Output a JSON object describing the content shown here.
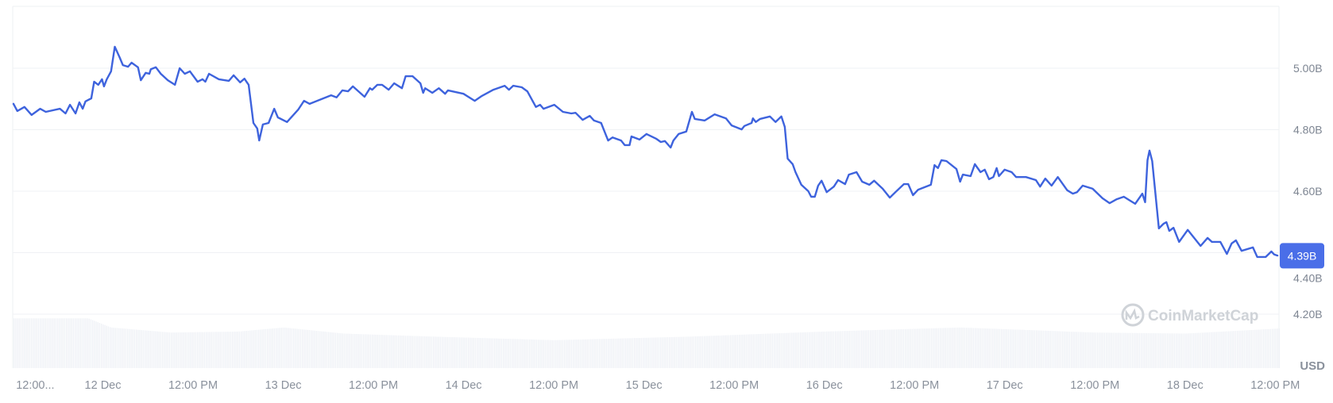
{
  "chart_data": {
    "type": "line",
    "currency_label": "USD",
    "y_tick_labels": [
      "5.00B",
      "4.80B",
      "4.60B",
      "4.40B",
      "4.20B"
    ],
    "y_ticks": [
      5.0,
      4.8,
      4.6,
      4.4,
      4.2
    ],
    "ylim": [
      4.09,
      5.2
    ],
    "xlim": [
      "11 Dec 12:00",
      "18 Dec 12:30"
    ],
    "x_tick_labels": [
      {
        "label": "12:00...",
        "at": "11 Dec 15:00"
      },
      {
        "label": "12 Dec",
        "at": "12 Dec 00:00"
      },
      {
        "label": "12:00 PM",
        "at": "12 Dec 12:00"
      },
      {
        "label": "13 Dec",
        "at": "13 Dec 00:00"
      },
      {
        "label": "12:00 PM",
        "at": "13 Dec 12:00"
      },
      {
        "label": "14 Dec",
        "at": "14 Dec 00:00"
      },
      {
        "label": "12:00 PM",
        "at": "14 Dec 12:00"
      },
      {
        "label": "15 Dec",
        "at": "15 Dec 00:00"
      },
      {
        "label": "12:00 PM",
        "at": "15 Dec 12:00"
      },
      {
        "label": "16 Dec",
        "at": "16 Dec 00:00"
      },
      {
        "label": "12:00 PM",
        "at": "16 Dec 12:00"
      },
      {
        "label": "17 Dec",
        "at": "17 Dec 00:00"
      },
      {
        "label": "12:00 PM",
        "at": "17 Dec 12:00"
      },
      {
        "label": "18 Dec",
        "at": "18 Dec 00:00"
      },
      {
        "label": "12:00 PM",
        "at": "18 Dec 12:00"
      }
    ],
    "grid": true,
    "line_color": "#3e63dd",
    "current_value_label": "4.39B",
    "current_value": 4.39,
    "badge_color": "#4a6ee8",
    "watermark": "CoinMarketCap",
    "volume_relative": [
      {
        "x": "11 Dec 12:00",
        "level": 0.98
      },
      {
        "x": "11 Dec 22:00",
        "level": 0.98
      },
      {
        "x": "12 Dec 01:00",
        "level": 0.8
      },
      {
        "x": "12 Dec 09:00",
        "level": 0.7
      },
      {
        "x": "12 Dec 18:00",
        "level": 0.72
      },
      {
        "x": "13 Dec 00:00",
        "level": 0.8
      },
      {
        "x": "13 Dec 08:00",
        "level": 0.68
      },
      {
        "x": "13 Dec 20:00",
        "level": 0.62
      },
      {
        "x": "14 Dec 12:00",
        "level": 0.55
      },
      {
        "x": "15 Dec 06:00",
        "level": 0.62
      },
      {
        "x": "16 Dec 00:00",
        "level": 0.72
      },
      {
        "x": "16 Dec 18:00",
        "level": 0.8
      },
      {
        "x": "17 Dec 12:00",
        "level": 0.7
      },
      {
        "x": "18 Dec 00:00",
        "level": 0.68
      },
      {
        "x": "18 Dec 12:30",
        "level": 0.78
      }
    ],
    "series": [
      {
        "points": [
          [
            "11 Dec 12:04",
            4.886
          ],
          [
            "11 Dec 12:37",
            4.861
          ],
          [
            "11 Dec 13:34",
            4.874
          ],
          [
            "11 Dec 14:31",
            4.848
          ],
          [
            "11 Dec 15:39",
            4.868
          ],
          [
            "11 Dec 16:24",
            4.858
          ],
          [
            "11 Dec 18:17",
            4.868
          ],
          [
            "11 Dec 19:02",
            4.853
          ],
          [
            "11 Dec 19:37",
            4.881
          ],
          [
            "11 Dec 20:22",
            4.853
          ],
          [
            "11 Dec 20:52",
            4.889
          ],
          [
            "11 Dec 21:19",
            4.868
          ],
          [
            "11 Dec 21:41",
            4.892
          ],
          [
            "11 Dec 22:27",
            4.902
          ],
          [
            "11 Dec 22:50",
            4.956
          ],
          [
            "11 Dec 23:23",
            4.946
          ],
          [
            "11 Dec 23:53",
            4.964
          ],
          [
            "12 Dec 00:09",
            4.941
          ],
          [
            "12 Dec 00:31",
            4.964
          ],
          [
            "12 Dec 01:05",
            4.99
          ],
          [
            "12 Dec 01:35",
            5.07
          ],
          [
            "12 Dec 02:13",
            5.036
          ],
          [
            "12 Dec 02:40",
            5.01
          ],
          [
            "12 Dec 03:21",
            5.005
          ],
          [
            "12 Dec 03:49",
            5.018
          ],
          [
            "12 Dec 04:40",
            5.003
          ],
          [
            "12 Dec 05:03",
            4.961
          ],
          [
            "12 Dec 05:42",
            4.985
          ],
          [
            "12 Dec 06:11",
            4.982
          ],
          [
            "12 Dec 06:23",
            4.997
          ],
          [
            "12 Dec 07:03",
            5.003
          ],
          [
            "12 Dec 07:42",
            4.982
          ],
          [
            "12 Dec 08:38",
            4.961
          ],
          [
            "12 Dec 09:35",
            4.946
          ],
          [
            "12 Dec 10:13",
            5.0
          ],
          [
            "12 Dec 10:54",
            4.982
          ],
          [
            "12 Dec 11:35",
            4.99
          ],
          [
            "12 Dec 12:36",
            4.956
          ],
          [
            "12 Dec 13:15",
            4.964
          ],
          [
            "12 Dec 13:38",
            4.956
          ],
          [
            "12 Dec 14:07",
            4.982
          ],
          [
            "12 Dec 15:26",
            4.964
          ],
          [
            "12 Dec 16:46",
            4.959
          ],
          [
            "12 Dec 17:24",
            4.977
          ],
          [
            "12 Dec 18:16",
            4.954
          ],
          [
            "12 Dec 18:50",
            4.966
          ],
          [
            "12 Dec 19:24",
            4.946
          ],
          [
            "12 Dec 19:40",
            4.892
          ],
          [
            "12 Dec 20:02",
            4.822
          ],
          [
            "12 Dec 20:32",
            4.804
          ],
          [
            "12 Dec 20:48",
            4.765
          ],
          [
            "12 Dec 21:17",
            4.817
          ],
          [
            "12 Dec 22:03",
            4.822
          ],
          [
            "12 Dec 22:48",
            4.868
          ],
          [
            "12 Dec 23:17",
            4.84
          ],
          [
            "13 Dec 00:30",
            4.825
          ],
          [
            "13 Dec 02:01",
            4.866
          ],
          [
            "13 Dec 02:46",
            4.894
          ],
          [
            "13 Dec 03:31",
            4.884
          ],
          [
            "13 Dec 05:02",
            4.899
          ],
          [
            "13 Dec 06:22",
            4.912
          ],
          [
            "13 Dec 07:06",
            4.905
          ],
          [
            "13 Dec 07:52",
            4.928
          ],
          [
            "13 Dec 08:37",
            4.925
          ],
          [
            "13 Dec 09:16",
            4.941
          ],
          [
            "13 Dec 10:49",
            4.907
          ],
          [
            "13 Dec 11:32",
            4.935
          ],
          [
            "13 Dec 11:50",
            4.93
          ],
          [
            "13 Dec 12:31",
            4.946
          ],
          [
            "13 Dec 13:09",
            4.946
          ],
          [
            "13 Dec 14:01",
            4.93
          ],
          [
            "13 Dec 14:46",
            4.951
          ],
          [
            "13 Dec 15:48",
            4.935
          ],
          [
            "13 Dec 16:17",
            4.974
          ],
          [
            "13 Dec 17:13",
            4.974
          ],
          [
            "13 Dec 18:15",
            4.951
          ],
          [
            "13 Dec 18:37",
            4.92
          ],
          [
            "13 Dec 18:53",
            4.935
          ],
          [
            "13 Dec 19:50",
            4.92
          ],
          [
            "13 Dec 20:42",
            4.935
          ],
          [
            "13 Dec 21:32",
            4.917
          ],
          [
            "13 Dec 21:55",
            4.928
          ],
          [
            "13 Dec 23:59",
            4.917
          ],
          [
            "14 Dec 01:29",
            4.894
          ],
          [
            "14 Dec 02:26",
            4.91
          ],
          [
            "14 Dec 03:58",
            4.93
          ],
          [
            "14 Dec 05:28",
            4.943
          ],
          [
            "14 Dec 06:02",
            4.93
          ],
          [
            "14 Dec 06:36",
            4.943
          ],
          [
            "14 Dec 07:44",
            4.938
          ],
          [
            "14 Dec 08:29",
            4.925
          ],
          [
            "14 Dec 09:37",
            4.874
          ],
          [
            "14 Dec 10:11",
            4.881
          ],
          [
            "14 Dec 10:38",
            4.868
          ],
          [
            "14 Dec 12:04",
            4.881
          ],
          [
            "14 Dec 13:13",
            4.858
          ],
          [
            "14 Dec 14:20",
            4.853
          ],
          [
            "14 Dec 14:54",
            4.855
          ],
          [
            "14 Dec 15:51",
            4.832
          ],
          [
            "14 Dec 16:47",
            4.845
          ],
          [
            "14 Dec 17:21",
            4.83
          ],
          [
            "14 Dec 18:18",
            4.822
          ],
          [
            "14 Dec 19:14",
            4.765
          ],
          [
            "14 Dec 19:49",
            4.775
          ],
          [
            "14 Dec 20:57",
            4.765
          ],
          [
            "14 Dec 21:26",
            4.75
          ],
          [
            "14 Dec 22:05",
            4.75
          ],
          [
            "14 Dec 22:20",
            4.778
          ],
          [
            "14 Dec 23:24",
            4.768
          ],
          [
            "15 Dec 00:20",
            4.786
          ],
          [
            "15 Dec 01:40",
            4.77
          ],
          [
            "15 Dec 02:14",
            4.76
          ],
          [
            "15 Dec 02:47",
            4.763
          ],
          [
            "15 Dec 03:33",
            4.742
          ],
          [
            "15 Dec 03:55",
            4.765
          ],
          [
            "15 Dec 04:37",
            4.786
          ],
          [
            "15 Dec 05:38",
            4.794
          ],
          [
            "15 Dec 06:23",
            4.858
          ],
          [
            "15 Dec 06:46",
            4.835
          ],
          [
            "15 Dec 08:05",
            4.83
          ],
          [
            "15 Dec 09:24",
            4.85
          ],
          [
            "15 Dec 10:55",
            4.837
          ],
          [
            "15 Dec 11:40",
            4.814
          ],
          [
            "15 Dec 13:00",
            4.801
          ],
          [
            "15 Dec 13:22",
            4.812
          ],
          [
            "15 Dec 14:19",
            4.822
          ],
          [
            "15 Dec 14:30",
            4.837
          ],
          [
            "15 Dec 14:53",
            4.825
          ],
          [
            "15 Dec 15:27",
            4.835
          ],
          [
            "15 Dec 16:46",
            4.843
          ],
          [
            "15 Dec 17:31",
            4.825
          ],
          [
            "15 Dec 18:17",
            4.843
          ],
          [
            "15 Dec 18:44",
            4.809
          ],
          [
            "15 Dec 19:07",
            4.706
          ],
          [
            "15 Dec 19:47",
            4.688
          ],
          [
            "15 Dec 20:10",
            4.662
          ],
          [
            "15 Dec 20:56",
            4.621
          ],
          [
            "15 Dec 21:52",
            4.6
          ],
          [
            "15 Dec 22:15",
            4.582
          ],
          [
            "15 Dec 22:44",
            4.582
          ],
          [
            "15 Dec 23:11",
            4.618
          ],
          [
            "15 Dec 23:38",
            4.634
          ],
          [
            "16 Dec 00:19",
            4.597
          ],
          [
            "16 Dec 01:16",
            4.615
          ],
          [
            "16 Dec 01:50",
            4.636
          ],
          [
            "16 Dec 02:46",
            4.623
          ],
          [
            "16 Dec 03:16",
            4.654
          ],
          [
            "16 Dec 04:17",
            4.662
          ],
          [
            "16 Dec 05:02",
            4.631
          ],
          [
            "16 Dec 05:59",
            4.621
          ],
          [
            "16 Dec 06:37",
            4.634
          ],
          [
            "16 Dec 07:46",
            4.608
          ],
          [
            "16 Dec 08:43",
            4.579
          ],
          [
            "16 Dec 09:28",
            4.597
          ],
          [
            "16 Dec 10:35",
            4.623
          ],
          [
            "16 Dec 11:10",
            4.623
          ],
          [
            "16 Dec 11:48",
            4.587
          ],
          [
            "16 Dec 12:29",
            4.605
          ],
          [
            "16 Dec 14:11",
            4.621
          ],
          [
            "16 Dec 14:40",
            4.685
          ],
          [
            "16 Dec 15:07",
            4.675
          ],
          [
            "16 Dec 15:35",
            4.701
          ],
          [
            "16 Dec 16:15",
            4.698
          ],
          [
            "16 Dec 17:35",
            4.672
          ],
          [
            "16 Dec 18:04",
            4.631
          ],
          [
            "16 Dec 18:26",
            4.654
          ],
          [
            "16 Dec 19:28",
            4.649
          ],
          [
            "16 Dec 20:02",
            4.688
          ],
          [
            "16 Dec 20:47",
            4.662
          ],
          [
            "16 Dec 21:21",
            4.67
          ],
          [
            "16 Dec 21:55",
            4.639
          ],
          [
            "16 Dec 22:29",
            4.646
          ],
          [
            "16 Dec 22:56",
            4.675
          ],
          [
            "16 Dec 23:14",
            4.649
          ],
          [
            "16 Dec 23:59",
            4.67
          ],
          [
            "17 Dec 00:56",
            4.662
          ],
          [
            "17 Dec 01:31",
            4.646
          ],
          [
            "17 Dec 02:50",
            4.646
          ],
          [
            "17 Dec 04:09",
            4.636
          ],
          [
            "17 Dec 04:43",
            4.615
          ],
          [
            "17 Dec 05:24",
            4.641
          ],
          [
            "17 Dec 06:14",
            4.618
          ],
          [
            "17 Dec 07:04",
            4.646
          ],
          [
            "17 Dec 08:19",
            4.603
          ],
          [
            "17 Dec 09:04",
            4.592
          ],
          [
            "17 Dec 09:38",
            4.597
          ],
          [
            "17 Dec 10:23",
            4.618
          ],
          [
            "17 Dec 11:42",
            4.608
          ],
          [
            "17 Dec 13:01",
            4.577
          ],
          [
            "17 Dec 13:58",
            4.561
          ],
          [
            "17 Dec 14:55",
            4.574
          ],
          [
            "17 Dec 15:51",
            4.582
          ],
          [
            "17 Dec 17:22",
            4.559
          ],
          [
            "17 Dec 18:19",
            4.592
          ],
          [
            "17 Dec 18:41",
            4.564
          ],
          [
            "17 Dec 19:00",
            4.701
          ],
          [
            "17 Dec 19:16",
            4.732
          ],
          [
            "17 Dec 19:38",
            4.698
          ],
          [
            "17 Dec 20:31",
            4.479
          ],
          [
            "17 Dec 21:08",
            4.494
          ],
          [
            "17 Dec 21:31",
            4.499
          ],
          [
            "17 Dec 21:54",
            4.471
          ],
          [
            "17 Dec 22:28",
            4.481
          ],
          [
            "17 Dec 23:13",
            4.435
          ],
          [
            "18 Dec 00:21",
            4.474
          ],
          [
            "18 Dec 02:04",
            4.422
          ],
          [
            "18 Dec 03:00",
            4.448
          ],
          [
            "18 Dec 03:34",
            4.435
          ],
          [
            "18 Dec 04:42",
            4.435
          ],
          [
            "18 Dec 05:34",
            4.396
          ],
          [
            "18 Dec 06:12",
            4.43
          ],
          [
            "18 Dec 06:46",
            4.44
          ],
          [
            "18 Dec 07:31",
            4.406
          ],
          [
            "18 Dec 09:02",
            4.417
          ],
          [
            "18 Dec 09:36",
            4.386
          ],
          [
            "18 Dec 10:44",
            4.386
          ],
          [
            "18 Dec 11:29",
            4.404
          ],
          [
            "18 Dec 11:52",
            4.394
          ],
          [
            "18 Dec 12:22",
            4.39
          ]
        ]
      }
    ]
  }
}
